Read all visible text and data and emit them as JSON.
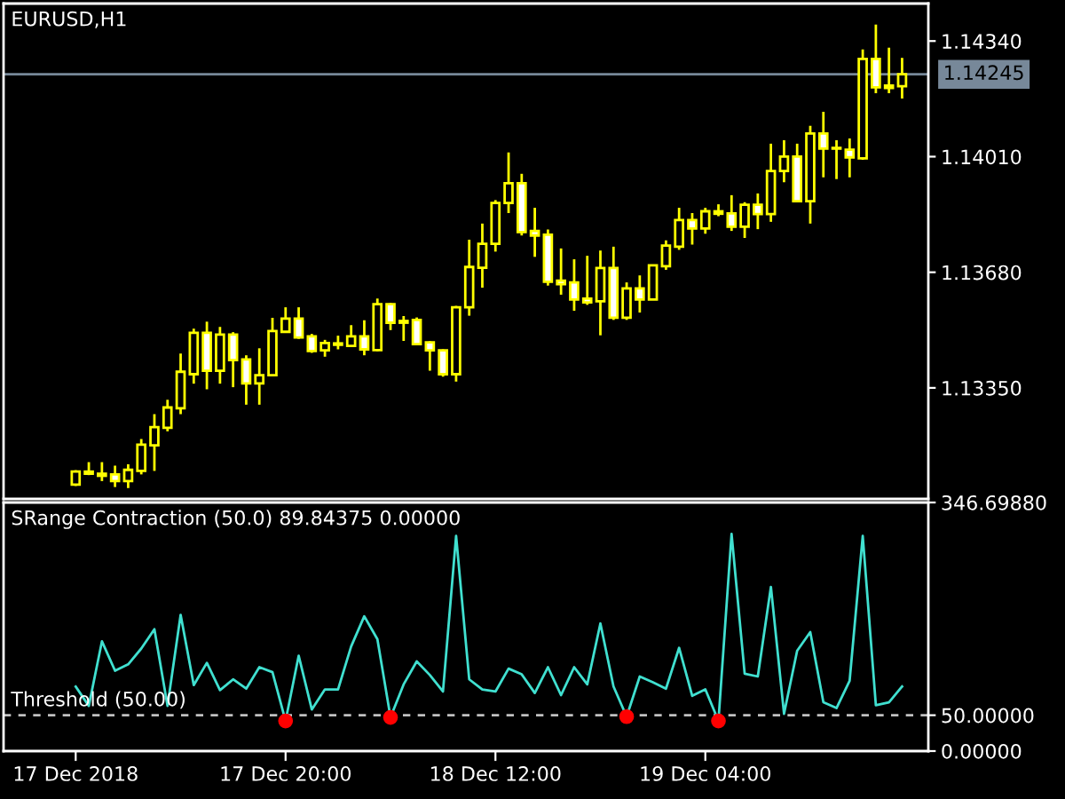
{
  "chart_data": [
    {
      "type": "candlestick",
      "title": "EURUSD,H1",
      "categories": [
        null,
        null,
        null,
        null,
        null,
        null,
        null,
        null,
        null,
        null,
        null,
        null,
        null,
        null,
        null,
        null,
        null,
        null,
        null,
        null,
        null,
        null,
        null,
        null,
        null,
        null,
        null,
        null,
        null,
        null,
        null,
        null,
        null,
        null,
        null,
        null,
        null,
        null,
        null,
        null,
        null,
        null,
        null,
        null,
        null,
        null,
        null,
        null,
        null,
        null,
        null,
        null,
        null,
        null,
        null,
        null,
        null,
        null,
        null,
        null,
        null,
        null,
        null,
        null
      ],
      "ohlc": [
        [
          1.13074,
          1.13115,
          1.1307,
          1.13111
        ],
        [
          1.13111,
          1.13138,
          1.13101,
          1.13105
        ],
        [
          1.13105,
          1.13138,
          1.13084,
          1.13099
        ],
        [
          1.13103,
          1.13128,
          1.13067,
          1.13084
        ],
        [
          1.13084,
          1.13132,
          1.13064,
          1.13116
        ],
        [
          1.13113,
          1.13204,
          1.13103,
          1.13188
        ],
        [
          1.13186,
          1.13275,
          1.13113,
          1.13238
        ],
        [
          1.13236,
          1.13316,
          1.13226,
          1.13294
        ],
        [
          1.13292,
          1.13448,
          1.13275,
          1.13396
        ],
        [
          1.13389,
          1.13519,
          1.13362,
          1.13507
        ],
        [
          1.13507,
          1.13539,
          1.13346,
          1.13399
        ],
        [
          1.13399,
          1.13524,
          1.13362,
          1.13502
        ],
        [
          1.13502,
          1.13509,
          1.13352,
          1.13429
        ],
        [
          1.13431,
          1.13443,
          1.13302,
          1.13363
        ],
        [
          1.13363,
          1.13463,
          1.13302,
          1.13386
        ],
        [
          1.13386,
          1.1355,
          1.13386,
          1.13512
        ],
        [
          1.1351,
          1.1358,
          1.1351,
          1.13548
        ],
        [
          1.13548,
          1.1358,
          1.1349,
          1.13494
        ],
        [
          1.13497,
          1.13504,
          1.1345,
          1.13455
        ],
        [
          1.13457,
          1.13487,
          1.13439,
          1.13478
        ],
        [
          1.13477,
          1.13499,
          1.1346,
          1.13473
        ],
        [
          1.1347,
          1.13529,
          1.1347,
          1.13497
        ],
        [
          1.13497,
          1.13543,
          1.13443,
          1.1346
        ],
        [
          1.13458,
          1.13605,
          1.13455,
          1.13589
        ],
        [
          1.13589,
          1.13592,
          1.13515,
          1.13536
        ],
        [
          1.13536,
          1.13555,
          1.13484,
          1.13541
        ],
        [
          1.13544,
          1.13551,
          1.13475,
          1.13475
        ],
        [
          1.1348,
          1.13483,
          1.13399,
          1.13457
        ],
        [
          1.13457,
          1.1346,
          1.13382,
          1.13389
        ],
        [
          1.13389,
          1.13584,
          1.13368,
          1.1358
        ],
        [
          1.1358,
          1.13773,
          1.13556,
          1.13695
        ],
        [
          1.13693,
          1.13819,
          1.13636,
          1.13761
        ],
        [
          1.13761,
          1.13886,
          1.13739,
          1.13878
        ],
        [
          1.13878,
          1.14022,
          1.13849,
          1.13934
        ],
        [
          1.13934,
          1.13961,
          1.13785,
          1.13795
        ],
        [
          1.13798,
          1.13864,
          1.13724,
          1.13785
        ],
        [
          1.13787,
          1.13802,
          1.13642,
          1.13653
        ],
        [
          1.13656,
          1.13748,
          1.13616,
          1.13646
        ],
        [
          1.13651,
          1.13717,
          1.1357,
          1.13602
        ],
        [
          1.13605,
          1.13727,
          1.13587,
          1.13594
        ],
        [
          1.13597,
          1.13742,
          1.135,
          1.13692
        ],
        [
          1.13692,
          1.13753,
          1.13544,
          1.1355
        ],
        [
          1.1355,
          1.13651,
          1.13544,
          1.13634
        ],
        [
          1.13634,
          1.13671,
          1.13565,
          1.13602
        ],
        [
          1.13602,
          1.137,
          1.13602,
          1.137
        ],
        [
          1.13697,
          1.13771,
          1.13687,
          1.13756
        ],
        [
          1.13753,
          1.13864,
          1.13744,
          1.13829
        ],
        [
          1.13829,
          1.13849,
          1.13759,
          1.13805
        ],
        [
          1.13805,
          1.13864,
          1.1379,
          1.13854
        ],
        [
          1.13854,
          1.13874,
          1.1384,
          1.13847
        ],
        [
          1.13848,
          1.139,
          1.13798,
          1.1381
        ],
        [
          1.1381,
          1.1388,
          1.13778,
          1.13873
        ],
        [
          1.13873,
          1.13905,
          1.13803,
          1.13846
        ],
        [
          1.13846,
          1.14047,
          1.13824,
          1.13969
        ],
        [
          1.13969,
          1.14057,
          1.13937,
          1.1401
        ],
        [
          1.1401,
          1.14047,
          1.1388,
          1.13883
        ],
        [
          1.13883,
          1.14098,
          1.13819,
          1.14076
        ],
        [
          1.14076,
          1.14138,
          1.13951,
          1.14033
        ],
        [
          1.14033,
          1.14057,
          1.13946,
          1.14035
        ],
        [
          1.1403,
          1.14062,
          1.13951,
          1.14008
        ],
        [
          1.14005,
          1.14316,
          1.14001,
          1.14289
        ],
        [
          1.14289,
          1.14387,
          1.14191,
          1.14208
        ],
        [
          1.14213,
          1.14321,
          1.14191,
          1.14206
        ],
        [
          1.14211,
          1.14292,
          1.14176,
          1.14245
        ]
      ],
      "color": "#ffff00",
      "colors": [
        "#000000",
        "#ffffff",
        "#ffffff",
        "#ffffff",
        "#000000",
        "#000000",
        "#000000",
        "#000000",
        "#000000",
        "#000000",
        "#ffffff",
        "#000000",
        "#ffffff",
        "#ffffff",
        "#000000",
        "#000000",
        "#000000",
        "#ffffff",
        "#ffffff",
        "#000000",
        "#ffffff",
        "#000000",
        "#ffffff",
        "#000000",
        "#ffffff",
        "#000000",
        "#ffffff",
        "#ffffff",
        "#ffffff",
        "#000000",
        "#000000",
        "#000000",
        "#000000",
        "#000000",
        "#ffffff",
        "#ffffff",
        "#ffffff",
        "#ffffff",
        "#ffffff",
        "#ffffff",
        "#000000",
        "#ffffff",
        "#000000",
        "#ffffff",
        "#000000",
        "#000000",
        "#000000",
        "#ffffff",
        "#000000",
        "#ffffff",
        "#ffffff",
        "#000000",
        "#ffffff",
        "#000000",
        "#000000",
        "#ffffff",
        "#000000",
        "#ffffff",
        "#000000",
        "#ffffff",
        "#000000",
        "#ffffff",
        "#ffffff",
        "#000000"
      ],
      "ylim": [
        1.13033,
        1.14447
      ],
      "yticks": [
        {
          "value": 1.1335,
          "label": "1.13350"
        },
        {
          "value": 1.1368,
          "label": "1.13680"
        },
        {
          "value": 1.1401,
          "label": "1.14010"
        },
        {
          "value": 1.1434,
          "label": "1.14340"
        }
      ],
      "ref_lines": [
        {
          "axis": "y",
          "value": 1.14245,
          "label": "1.14245",
          "color": "#778899",
          "line_style": "solid"
        }
      ],
      "tick_labels": "y"
    },
    {
      "type": "line",
      "title": "SRange Contraction (50.0) 89.84375 0.00000",
      "categories": [
        "17 Dec 2018",
        null,
        null,
        null,
        null,
        null,
        null,
        null,
        null,
        null,
        null,
        null,
        null,
        null,
        null,
        null,
        "17 Dec 20:00",
        null,
        null,
        null,
        null,
        null,
        null,
        null,
        null,
        null,
        null,
        null,
        null,
        null,
        null,
        null,
        "18 Dec 12:00",
        null,
        null,
        null,
        null,
        null,
        null,
        null,
        null,
        null,
        null,
        null,
        null,
        null,
        null,
        null,
        "19 Dec 04:00",
        null,
        null,
        null,
        null,
        null,
        null,
        null,
        null,
        null,
        null,
        null,
        null,
        null,
        null,
        null
      ],
      "series": [
        {
          "type": "line",
          "color": "#40e0d0",
          "values": [
            90,
            63,
            153,
            112,
            121,
            143,
            170,
            63,
            190,
            92,
            123,
            85,
            100,
            87,
            117,
            110,
            42,
            133,
            58,
            86,
            86,
            146,
            188,
            156,
            47,
            93,
            125,
            106,
            83,
            300,
            100,
            86,
            83,
            115,
            107,
            81,
            117,
            78,
            117,
            93,
            178,
            90,
            48,
            104,
            96,
            87,
            144,
            77,
            86,
            42,
            303,
            108,
            104,
            229,
            52,
            140,
            166,
            68,
            60,
            98,
            300,
            64,
            68,
            90
          ]
        },
        {
          "type": "scatter",
          "color": "#ff0000",
          "values": [
            null,
            null,
            null,
            null,
            null,
            null,
            null,
            null,
            null,
            null,
            null,
            null,
            null,
            null,
            null,
            null,
            42,
            null,
            null,
            null,
            null,
            null,
            null,
            null,
            47,
            null,
            null,
            null,
            null,
            null,
            null,
            null,
            null,
            null,
            null,
            null,
            null,
            null,
            null,
            null,
            null,
            null,
            48,
            null,
            null,
            null,
            null,
            null,
            null,
            42,
            null,
            null,
            null,
            null,
            null,
            null,
            null,
            null,
            null,
            null,
            null,
            null,
            null,
            null
          ]
        }
      ],
      "ylim": [
        0,
        346.6988
      ],
      "yticks": [
        {
          "value": 0,
          "label": "0.00000"
        },
        {
          "value": 50,
          "label": "50.00000"
        },
        {
          "value": 346.6988,
          "label": "346.69880"
        }
      ],
      "ref_lines": [
        {
          "axis": "y",
          "value": 50,
          "label": "Threshold (50.00)",
          "color": "#c0c0c0",
          "line_style": "dashed"
        }
      ]
    }
  ]
}
